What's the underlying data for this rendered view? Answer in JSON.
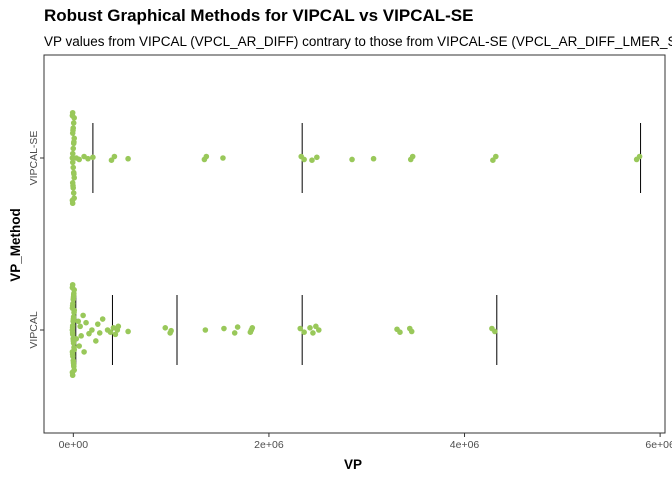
{
  "chart_data": {
    "type": "scatter",
    "title": "Robust Graphical Methods for VIPCAL vs VIPCAL-SE",
    "subtitle": "VP values from VIPCAL (VPCL_AR_DIFF) contrary to those from VIPCAL-SE (VPCL_AR_DIFF_LMER_SE)",
    "xlabel": "VP",
    "ylabel": "VP_Method",
    "xlim": [
      -300000,
      6050000
    ],
    "x_ticks": [
      0,
      2000000,
      4000000,
      6000000
    ],
    "x_tick_labels": [
      "0e+00",
      "2e+06",
      "4e+06",
      "6e+06"
    ],
    "categories": [
      "VIPCAL",
      "VIPCAL-SE"
    ],
    "grid": false,
    "point_color": "#99c85a",
    "line_color": "#000000",
    "series": [
      {
        "category": "VIPCAL-SE",
        "vertical_lines": [
          0,
          200000,
          2340000,
          5800000
        ],
        "jittered_zero_points": [
          0.62,
          0.55,
          0.48,
          0.41,
          0.34,
          0.27,
          0.2,
          0.13,
          0.06,
          0.0,
          -0.06,
          -0.13,
          -0.2,
          -0.27,
          -0.34,
          -0.41,
          -0.48,
          -0.55,
          -0.62,
          0.58,
          -0.58,
          0.38,
          -0.38,
          0.22,
          -0.22
        ],
        "x": [
          30000,
          60000,
          110000,
          150000,
          200000,
          390000,
          420000,
          560000,
          1340000,
          1360000,
          1530000,
          2330000,
          2360000,
          2440000,
          2490000,
          2850000,
          3070000,
          3450000,
          3470000,
          4290000,
          4320000,
          5760000,
          5790000
        ],
        "y": [
          0.0,
          0.02,
          -0.02,
          0.01,
          -0.01,
          0.03,
          -0.02,
          0.01,
          0.02,
          -0.02,
          0.0,
          -0.02,
          0.02,
          0.03,
          -0.01,
          0.02,
          0.01,
          0.02,
          -0.02,
          0.03,
          -0.02,
          0.02,
          -0.02
        ]
      },
      {
        "category": "VIPCAL",
        "vertical_lines": [
          0,
          25000,
          400000,
          1060000,
          2340000,
          4330000
        ],
        "jittered_zero_points": [
          0.62,
          0.55,
          0.48,
          0.42,
          0.36,
          0.3,
          0.24,
          0.18,
          0.12,
          0.06,
          0.0,
          -0.06,
          -0.12,
          -0.18,
          -0.24,
          -0.3,
          -0.36,
          -0.42,
          -0.48,
          -0.55,
          -0.62,
          0.58,
          -0.58,
          0.45,
          -0.45,
          0.33,
          -0.33,
          0.15,
          -0.15,
          0.04,
          -0.04,
          0.27,
          -0.27,
          0.5,
          -0.5
        ],
        "x": [
          30000,
          50000,
          60000,
          70000,
          80000,
          100000,
          110000,
          130000,
          160000,
          190000,
          230000,
          250000,
          270000,
          300000,
          350000,
          380000,
          410000,
          430000,
          450000,
          460000,
          560000,
          940000,
          990000,
          1000000,
          1350000,
          1540000,
          1650000,
          1680000,
          1810000,
          1830000,
          1820000,
          2320000,
          2360000,
          2420000,
          2450000,
          2480000,
          2510000,
          3310000,
          3340000,
          3440000,
          3460000,
          4280000,
          4310000
        ],
        "y": [
          0.12,
          -0.12,
          0.22,
          -0.05,
          0.08,
          -0.2,
          0.3,
          -0.1,
          0.05,
          0.0,
          0.15,
          -0.08,
          0.04,
          -0.15,
          0.0,
          0.03,
          -0.03,
          0.06,
          0.0,
          -0.05,
          0.02,
          -0.03,
          0.04,
          0.01,
          0.0,
          -0.02,
          0.04,
          -0.04,
          0.03,
          -0.03,
          0.0,
          -0.02,
          0.03,
          -0.03,
          0.04,
          -0.05,
          0.0,
          -0.01,
          0.03,
          -0.02,
          0.02,
          -0.02,
          0.02
        ]
      }
    ]
  }
}
